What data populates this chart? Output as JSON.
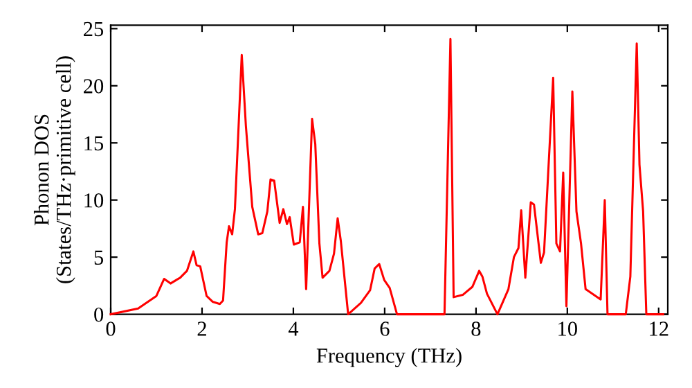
{
  "chart_data": {
    "type": "line",
    "xlabel": "Frequency (THz)",
    "ylabel": "Phonon DOS\n(States/THz·primitive cell)",
    "xlim": [
      0,
      12.2
    ],
    "ylim": [
      0,
      25.3
    ],
    "xticks": [
      0,
      2,
      4,
      6,
      8,
      10,
      12
    ],
    "yticks": [
      0,
      5,
      10,
      15,
      20,
      25
    ],
    "grid": false,
    "marker": "none",
    "line_style": "solid",
    "series": [
      {
        "color": "#ff0000",
        "x": [
          0,
          0.6,
          1.0,
          1.17,
          1.31,
          1.52,
          1.67,
          1.81,
          1.88,
          1.96,
          2.1,
          2.23,
          2.39,
          2.46,
          2.54,
          2.59,
          2.66,
          2.72,
          2.87,
          2.96,
          3.1,
          3.23,
          3.32,
          3.43,
          3.5,
          3.58,
          3.7,
          3.78,
          3.86,
          3.92,
          4.01,
          4.14,
          4.21,
          4.28,
          4.41,
          4.48,
          4.57,
          4.64,
          4.79,
          4.89,
          4.97,
          5.04,
          5.2,
          5.48,
          5.68,
          5.78,
          5.88,
          5.99,
          6.11,
          6.27,
          7.31,
          7.44,
          7.51,
          7.71,
          7.92,
          8.07,
          8.14,
          8.24,
          8.47,
          8.71,
          8.83,
          8.93,
          8.99,
          9.08,
          9.2,
          9.27,
          9.42,
          9.49,
          9.69,
          9.76,
          9.84,
          9.91,
          9.98,
          10.11,
          10.2,
          10.3,
          10.4,
          10.73,
          10.82,
          10.88,
          11.28,
          11.38,
          11.52,
          11.58,
          11.66,
          11.73,
          12.1
        ],
        "values": [
          0,
          0.5,
          1.6,
          3.1,
          2.7,
          3.2,
          3.8,
          5.5,
          4.3,
          4.2,
          1.6,
          1.1,
          0.9,
          1.2,
          6.3,
          7.7,
          7.0,
          9.2,
          22.7,
          16.5,
          9.4,
          7.0,
          7.1,
          9.0,
          11.8,
          11.7,
          8.0,
          9.2,
          7.9,
          8.5,
          6.1,
          6.3,
          9.4,
          2.2,
          17.1,
          14.9,
          6.2,
          3.2,
          3.8,
          5.3,
          8.4,
          6.4,
          0,
          1.0,
          2.1,
          4.0,
          4.4,
          3.0,
          2.3,
          0,
          0,
          24.1,
          1.5,
          1.7,
          2.4,
          3.8,
          3.3,
          1.8,
          0,
          2.2,
          5.0,
          5.8,
          9.1,
          3.2,
          9.8,
          9.6,
          4.5,
          5.4,
          20.7,
          6.2,
          5.5,
          12.4,
          0.7,
          19.5,
          9.0,
          6.2,
          2.2,
          1.3,
          10.0,
          0,
          0,
          3.3,
          23.7,
          13.1,
          9.0,
          0,
          0
        ]
      }
    ]
  }
}
